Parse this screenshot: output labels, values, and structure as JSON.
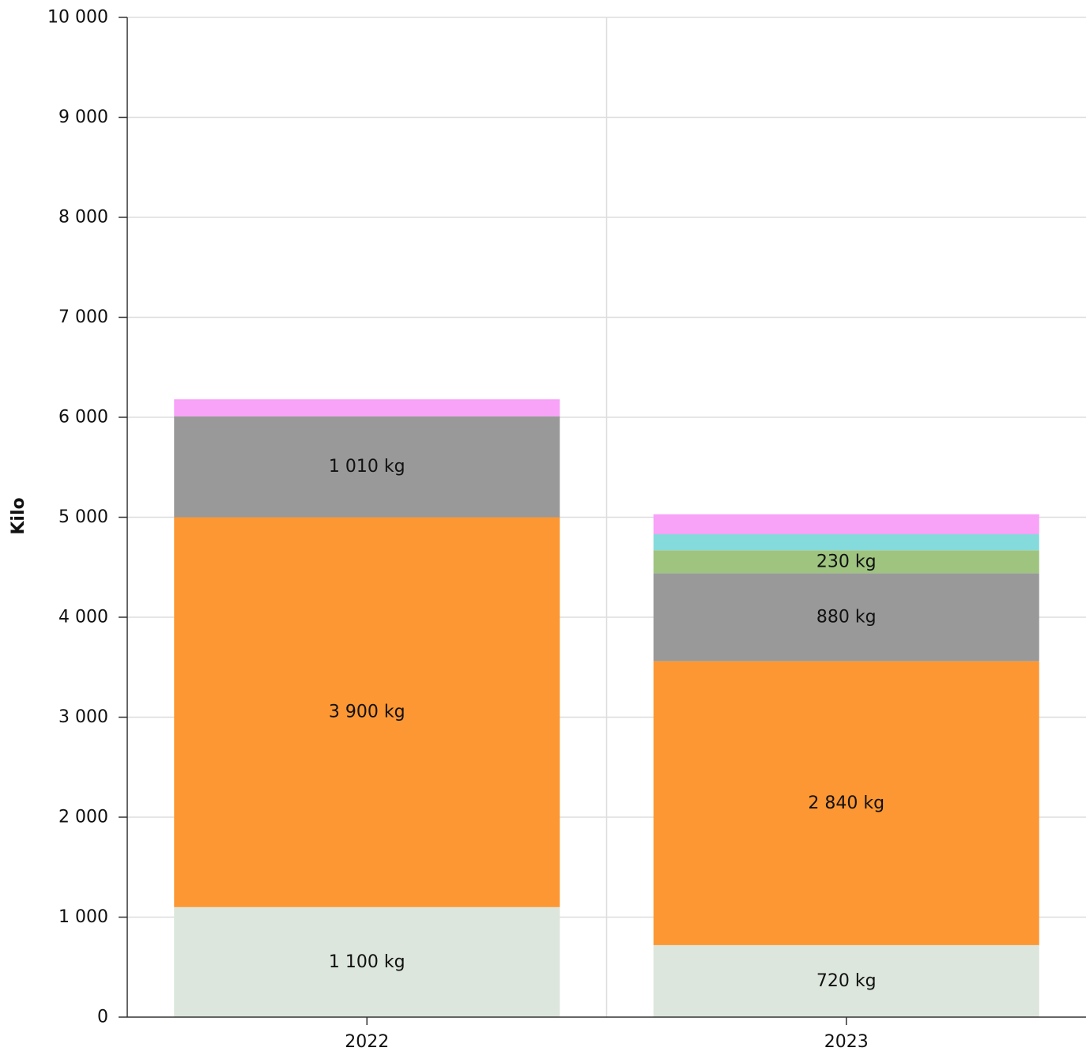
{
  "chart_data": {
    "type": "bar",
    "stacked": true,
    "categories": [
      "2022",
      "2023"
    ],
    "ylabel": "Kilo",
    "ylim": [
      0,
      10000
    ],
    "yticks": [
      0,
      1000,
      2000,
      3000,
      4000,
      5000,
      6000,
      7000,
      8000,
      9000,
      10000
    ],
    "ytick_labels": [
      "0",
      "1 000",
      "2 000",
      "3 000",
      "4 000",
      "5 000",
      "6 000",
      "7 000",
      "8 000",
      "9 000",
      "10 000"
    ],
    "grid": true,
    "series": [
      {
        "values": [
          1100,
          720
        ],
        "labels": [
          "1 100 kg",
          "720 kg"
        ],
        "color": "#dce6dc"
      },
      {
        "values": [
          3900,
          2840
        ],
        "labels": [
          "3 900 kg",
          "2 840 kg"
        ],
        "color": "#fd9733"
      },
      {
        "values": [
          1010,
          880
        ],
        "labels": [
          "1 010 kg",
          "880 kg"
        ],
        "color": "#999999"
      },
      {
        "values": [
          0,
          230
        ],
        "labels": [
          "",
          "230 kg"
        ],
        "color": "#9ec480"
      },
      {
        "values": [
          0,
          160
        ],
        "labels": [
          "",
          ""
        ],
        "color": "#85dadc"
      },
      {
        "values": [
          170,
          200
        ],
        "labels": [
          "",
          ""
        ],
        "color": "#f8a2f8"
      }
    ]
  }
}
